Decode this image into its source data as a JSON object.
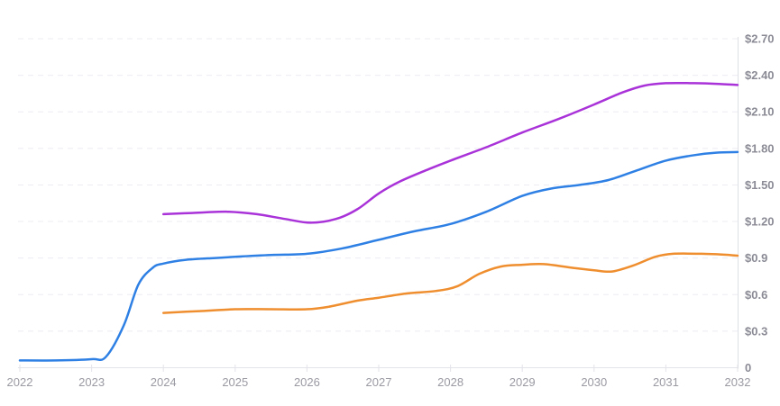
{
  "chart": {
    "background": "#ffffff",
    "axis_line_color": "#dfdfe6",
    "grid_color": "#ececf2",
    "baseline_color": "#e3e3ea",
    "x_label_color": "#9a9aa3",
    "y_label_color": "#8b8b96"
  },
  "chart_data": {
    "type": "line",
    "title": "",
    "subtitle": "",
    "legend": "none",
    "grid": "dashed-horizontal",
    "x": {
      "label": "",
      "lim": [
        2022,
        2032
      ],
      "ticks": [
        2022,
        2023,
        2024,
        2025,
        2026,
        2027,
        2028,
        2029,
        2030,
        2031,
        2032
      ],
      "tick_labels": [
        "2022",
        "2023",
        "2024",
        "2025",
        "2026",
        "2027",
        "2028",
        "2029",
        "2030",
        "2031",
        "2032"
      ]
    },
    "y": {
      "label": "",
      "lim": [
        0,
        2.7
      ],
      "side": "right",
      "ticks": [
        {
          "value": 0,
          "label": "0"
        },
        {
          "value": 0.3,
          "label": "$0.3"
        },
        {
          "value": 0.6,
          "label": "$0.6"
        },
        {
          "value": 0.9,
          "label": "$0.9"
        },
        {
          "value": 1.2,
          "label": "$1.20"
        },
        {
          "value": 1.5,
          "label": "$1.50"
        },
        {
          "value": 1.8,
          "label": "$1.80"
        },
        {
          "value": 2.1,
          "label": "$2.10"
        },
        {
          "value": 2.4,
          "label": "$2.40"
        },
        {
          "value": 2.7,
          "label": "$2.70"
        }
      ]
    },
    "series": [
      {
        "id": "blue",
        "name": "series-blue",
        "color": "#2f80e4",
        "points": [
          [
            2022.0,
            0.06
          ],
          [
            2022.5,
            0.06
          ],
          [
            2023.0,
            0.07
          ],
          [
            2023.2,
            0.09
          ],
          [
            2023.45,
            0.35
          ],
          [
            2023.65,
            0.68
          ],
          [
            2023.85,
            0.82
          ],
          [
            2024.0,
            0.855
          ],
          [
            2024.3,
            0.885
          ],
          [
            2024.7,
            0.9
          ],
          [
            2025.0,
            0.91
          ],
          [
            2025.5,
            0.925
          ],
          [
            2026.0,
            0.935
          ],
          [
            2026.5,
            0.98
          ],
          [
            2027.0,
            1.05
          ],
          [
            2027.5,
            1.12
          ],
          [
            2028.0,
            1.18
          ],
          [
            2028.5,
            1.28
          ],
          [
            2029.0,
            1.41
          ],
          [
            2029.4,
            1.47
          ],
          [
            2029.8,
            1.5
          ],
          [
            2030.2,
            1.54
          ],
          [
            2030.6,
            1.62
          ],
          [
            2031.0,
            1.7
          ],
          [
            2031.4,
            1.745
          ],
          [
            2031.7,
            1.765
          ],
          [
            2032.0,
            1.77
          ]
        ]
      },
      {
        "id": "purple",
        "name": "series-purple",
        "color": "#a933d8",
        "points": [
          [
            2024.0,
            1.26
          ],
          [
            2024.4,
            1.27
          ],
          [
            2024.9,
            1.28
          ],
          [
            2025.3,
            1.26
          ],
          [
            2025.7,
            1.22
          ],
          [
            2026.05,
            1.19
          ],
          [
            2026.4,
            1.22
          ],
          [
            2026.7,
            1.3
          ],
          [
            2027.0,
            1.43
          ],
          [
            2027.3,
            1.53
          ],
          [
            2027.7,
            1.63
          ],
          [
            2028.0,
            1.7
          ],
          [
            2028.5,
            1.81
          ],
          [
            2029.0,
            1.93
          ],
          [
            2029.5,
            2.04
          ],
          [
            2030.0,
            2.16
          ],
          [
            2030.4,
            2.26
          ],
          [
            2030.7,
            2.315
          ],
          [
            2031.0,
            2.335
          ],
          [
            2031.4,
            2.335
          ],
          [
            2031.7,
            2.33
          ],
          [
            2032.0,
            2.32
          ]
        ]
      },
      {
        "id": "orange",
        "name": "series-orange",
        "color": "#ef8e2e",
        "points": [
          [
            2024.0,
            0.45
          ],
          [
            2024.5,
            0.465
          ],
          [
            2025.0,
            0.48
          ],
          [
            2025.5,
            0.48
          ],
          [
            2026.0,
            0.48
          ],
          [
            2026.3,
            0.5
          ],
          [
            2026.7,
            0.55
          ],
          [
            2027.0,
            0.575
          ],
          [
            2027.4,
            0.61
          ],
          [
            2027.8,
            0.63
          ],
          [
            2028.1,
            0.67
          ],
          [
            2028.4,
            0.77
          ],
          [
            2028.7,
            0.83
          ],
          [
            2029.0,
            0.845
          ],
          [
            2029.3,
            0.85
          ],
          [
            2029.7,
            0.82
          ],
          [
            2030.0,
            0.8
          ],
          [
            2030.25,
            0.79
          ],
          [
            2030.55,
            0.84
          ],
          [
            2030.85,
            0.91
          ],
          [
            2031.1,
            0.935
          ],
          [
            2031.5,
            0.935
          ],
          [
            2031.75,
            0.93
          ],
          [
            2032.0,
            0.92
          ]
        ]
      }
    ]
  }
}
